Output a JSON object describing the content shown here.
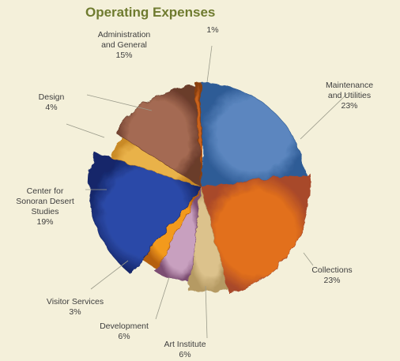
{
  "chart_data": {
    "type": "pie",
    "title": "Operating Expenses",
    "slices": [
      {
        "label": "Maintenance\nand Utilities",
        "pct": "23%",
        "value": 23,
        "color": "#5b86bf",
        "accent": "#2f5c96"
      },
      {
        "label": "Collections",
        "pct": "23%",
        "value": 23,
        "color": "#e2701c",
        "accent": "#a8482a"
      },
      {
        "label": "Art Institute",
        "pct": "6%",
        "value": 6,
        "color": "#dcc28c",
        "accent": "#b59a63"
      },
      {
        "label": "Development",
        "pct": "6%",
        "value": 6,
        "color": "#c8a0bf",
        "accent": "#7c4d72"
      },
      {
        "label": "Visitor Services",
        "pct": "3%",
        "value": 3,
        "color": "#f39a1c",
        "accent": "#b5600e"
      },
      {
        "label": "Center for\nSonoran Desert\nStudies",
        "pct": "19%",
        "value": 19,
        "color": "#2c4aa8",
        "accent": "#15276a"
      },
      {
        "label": "Design",
        "pct": "4%",
        "value": 4,
        "color": "#e9b24a",
        "accent": "#c98a26"
      },
      {
        "label": "Administration\nand General",
        "pct": "15%",
        "value": 15,
        "color": "#a46a52",
        "accent": "#6b3c2c"
      },
      {
        "label": "",
        "pct": "1%",
        "value": 1,
        "color": "#c9621c",
        "accent": "#8a3f10"
      }
    ]
  }
}
